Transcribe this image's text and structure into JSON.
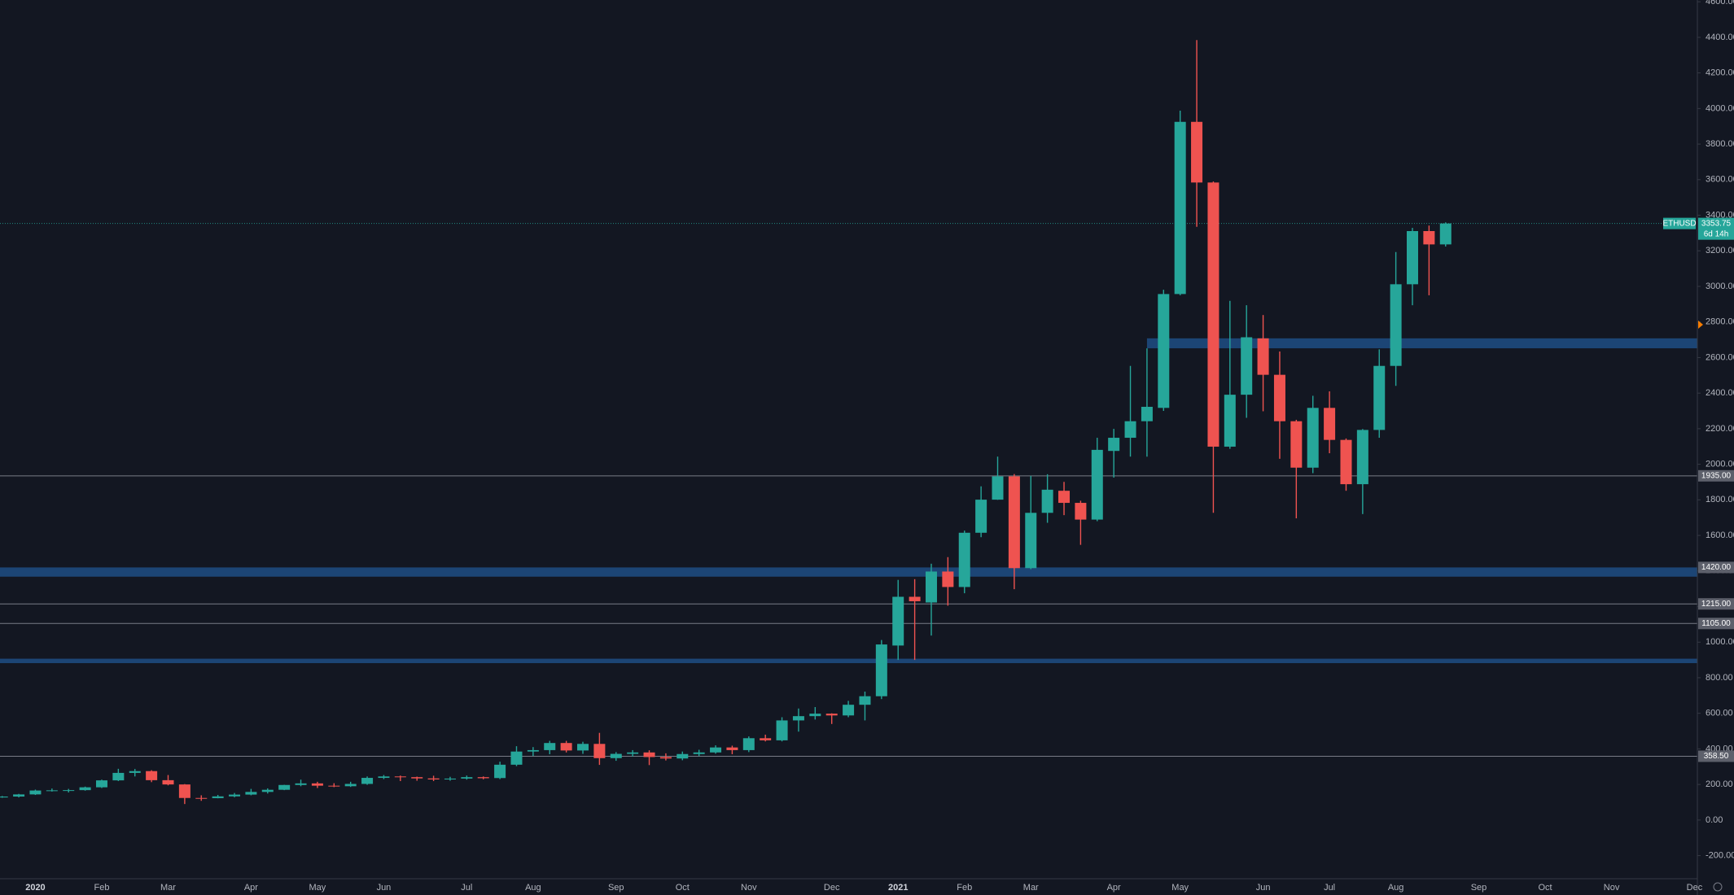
{
  "chart_data": {
    "type": "candlestick",
    "symbol": "ETHUSD",
    "categories": [
      null,
      null,
      "2020",
      null,
      null,
      null,
      "Feb",
      null,
      null,
      null,
      "Mar",
      null,
      null,
      null,
      null,
      "Apr",
      null,
      null,
      null,
      "May",
      null,
      null,
      null,
      "Jun",
      null,
      null,
      null,
      null,
      "Jul",
      null,
      null,
      null,
      "Aug",
      null,
      null,
      null,
      null,
      "Sep",
      null,
      null,
      null,
      "Oct",
      null,
      null,
      null,
      "Nov",
      null,
      null,
      null,
      null,
      "Dec",
      null,
      null,
      null,
      "2021",
      null,
      null,
      null,
      "Feb",
      null,
      null,
      null,
      "Mar",
      null,
      null,
      null,
      null,
      "Apr",
      null,
      null,
      null,
      "May",
      null,
      null,
      null,
      null,
      "Jun",
      null,
      null,
      null,
      "Jul",
      null,
      null,
      null,
      "Aug",
      null,
      null,
      null,
      null,
      "Sep",
      null,
      null,
      null,
      "Oct",
      null,
      null,
      null,
      "Nov",
      null,
      null,
      null,
      null,
      "Dec"
    ],
    "open": [
      127,
      132,
      144,
      166,
      167,
      168,
      184,
      223,
      265,
      275,
      224,
      200,
      124,
      123,
      133,
      143,
      158,
      170,
      197,
      206,
      193,
      190,
      203,
      237,
      245,
      241,
      234,
      228,
      233,
      241,
      236,
      311,
      385,
      393,
      433,
      391,
      428,
      348,
      372,
      380,
      354,
      346,
      371,
      380,
      408,
      393,
      460,
      448,
      560,
      584,
      598,
      588,
      648,
      696,
      981,
      1255,
      1223,
      1397,
      1310,
      1615,
      1801,
      1932,
      1416,
      1727,
      1851,
      1783,
      1689,
      2075,
      2149,
      2242,
      2317,
      2957,
      3925,
      3584,
      2099,
      2391,
      2708,
      2503,
      2242,
      1981,
      2317,
      2137,
      1888,
      2193,
      2553,
      3012,
      3311,
      3236,
      null,
      null,
      null,
      null,
      null,
      null,
      null,
      null,
      null,
      null,
      null,
      null,
      null,
      null,
      null
    ],
    "high": [
      135,
      147,
      171,
      177,
      175,
      188,
      227,
      288,
      287,
      280,
      253,
      202,
      139,
      141,
      152,
      175,
      178,
      198,
      227,
      215,
      207,
      215,
      245,
      253,
      250,
      244,
      249,
      243,
      250,
      245,
      328,
      415,
      410,
      445,
      445,
      440,
      490,
      382,
      393,
      392,
      375,
      385,
      395,
      420,
      418,
      470,
      480,
      578,
      627,
      635,
      600,
      670,
      722,
      1012,
      1350,
      1354,
      1441,
      1478,
      1627,
      1876,
      2043,
      1945,
      1935,
      1944,
      1901,
      1795,
      2149,
      2199,
      2553,
      2652,
      2981,
      3988,
      4385,
      3590,
      2919,
      2894,
      2839,
      2634,
      2250,
      2385,
      2410,
      2145,
      2198,
      2646,
      3193,
      3329,
      3342,
      3360,
      null,
      null,
      null,
      null,
      null,
      null,
      null,
      null,
      null,
      null,
      null,
      null,
      null,
      null,
      null
    ],
    "low": [
      125,
      127,
      141,
      160,
      155,
      165,
      180,
      219,
      245,
      213,
      195,
      90,
      108,
      122,
      128,
      139,
      149,
      168,
      190,
      180,
      185,
      186,
      198,
      230,
      219,
      221,
      219,
      221,
      227,
      229,
      230,
      303,
      360,
      370,
      380,
      372,
      310,
      333,
      357,
      309,
      335,
      336,
      360,
      373,
      370,
      382,
      442,
      442,
      497,
      565,
      540,
      578,
      560,
      680,
      900,
      900,
      1037,
      1205,
      1275,
      1590,
      1800,
      1298,
      1410,
      1671,
      1714,
      1547,
      1680,
      1925,
      2043,
      2043,
      2300,
      2950,
      3335,
      1727,
      2087,
      2261,
      2298,
      2031,
      1696,
      1950,
      2062,
      1851,
      1720,
      2149,
      2441,
      2894,
      2950,
      3224,
      null,
      null,
      null,
      null,
      null,
      null,
      null,
      null,
      null,
      null,
      null,
      null,
      null,
      null,
      null
    ],
    "close": [
      132,
      144,
      166,
      167,
      168,
      184,
      223,
      265,
      275,
      224,
      200,
      124,
      123,
      133,
      143,
      158,
      170,
      197,
      206,
      193,
      190,
      203,
      237,
      245,
      241,
      234,
      228,
      233,
      241,
      235,
      311,
      385,
      393,
      433,
      391,
      428,
      348,
      372,
      380,
      354,
      346,
      371,
      380,
      408,
      393,
      460,
      448,
      560,
      584,
      598,
      588,
      648,
      696,
      987,
      1255,
      1230,
      1397,
      1310,
      1615,
      1801,
      1932,
      1416,
      1727,
      1857,
      1783,
      1689,
      2081,
      2149,
      2242,
      2323,
      2957,
      3925,
      3584,
      2099,
      2391,
      2714,
      2503,
      2242,
      1981,
      2317,
      2137,
      1888,
      2193,
      2553,
      3012,
      3311,
      3236,
      3353.75,
      null,
      null,
      null,
      null,
      null,
      null,
      null,
      null,
      null,
      null,
      null,
      null,
      null,
      null,
      null
    ],
    "up_color": "#26a69a",
    "down_color": "#ef5350",
    "ylim": [
      -330,
      4610
    ],
    "yticks": [
      {
        "value": -200,
        "label": "-200.00"
      },
      {
        "value": 0,
        "label": "0.00"
      },
      {
        "value": 200,
        "label": "200.00"
      },
      {
        "value": 400,
        "label": "400.00"
      },
      {
        "value": 600,
        "label": "600.00"
      },
      {
        "value": 800,
        "label": "800.00"
      },
      {
        "value": 1000,
        "label": "1000.00"
      },
      {
        "value": 1200,
        "label": "1200.00"
      },
      {
        "value": 1400,
        "label": "1400.00"
      },
      {
        "value": 1600,
        "label": "1600.00"
      },
      {
        "value": 1800,
        "label": "1800.00"
      },
      {
        "value": 2000,
        "label": "2000.00"
      },
      {
        "value": 2200,
        "label": "2200.00"
      },
      {
        "value": 2400,
        "label": "2400.00"
      },
      {
        "value": 2600,
        "label": "2600.00"
      },
      {
        "value": 2800,
        "label": "2800.00"
      },
      {
        "value": 3000,
        "label": "3000.00"
      },
      {
        "value": 3200,
        "label": "3200.00"
      },
      {
        "value": 3400,
        "label": "3400.00"
      },
      {
        "value": 3600,
        "label": "3600.00"
      },
      {
        "value": 3800,
        "label": "3800.00"
      },
      {
        "value": 4000,
        "label": "4000.00"
      },
      {
        "value": 4200,
        "label": "4200.00"
      },
      {
        "value": 4400,
        "label": "4400.00"
      },
      {
        "value": 4600,
        "label": "4600.00"
      }
    ],
    "levels": [
      {
        "value": 1935,
        "label": "1935.00"
      },
      {
        "value": 1215,
        "label": "1215.00"
      },
      {
        "value": 1105,
        "label": "1105.00"
      },
      {
        "value": 358.5,
        "label": "358.50"
      }
    ],
    "zones": [
      {
        "from": 2652,
        "to": 2708,
        "x_start": 69
      },
      {
        "from": 1368,
        "to": 1420,
        "label": "1420.00"
      },
      {
        "from": 882,
        "to": 907
      }
    ],
    "zone_color": "#1e4a7e",
    "level_color": "#787b86",
    "last_price": 3353.75,
    "countdown": "6d 14h"
  }
}
